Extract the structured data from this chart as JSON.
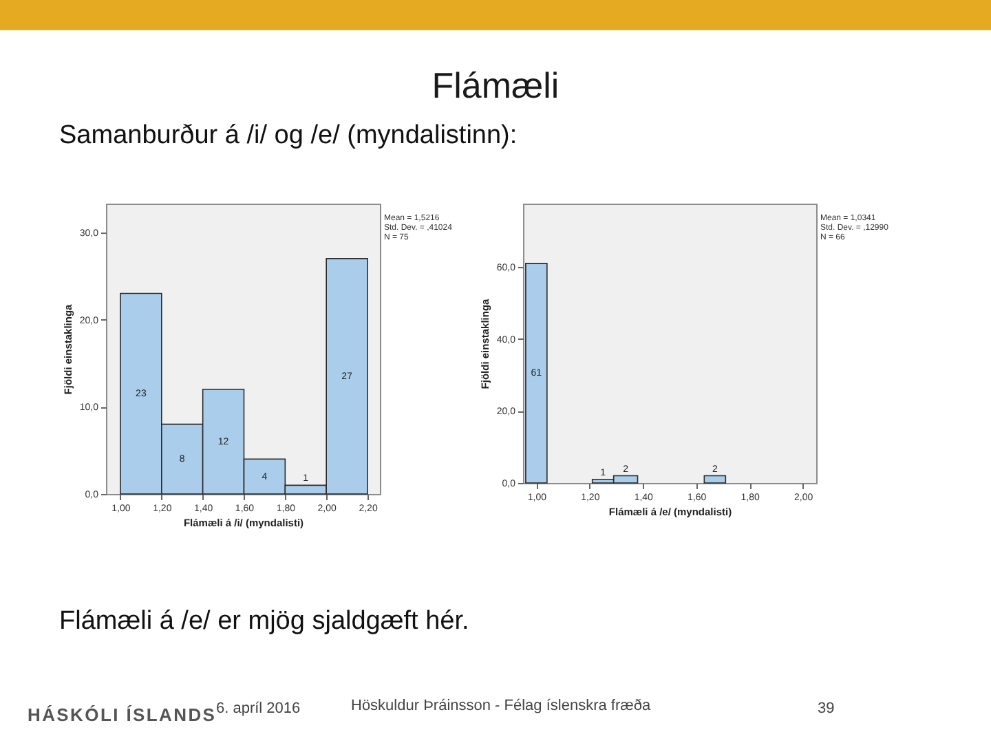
{
  "chart_data": [
    {
      "type": "other",
      "title": "Flámæli",
      "subtitle": "Samanburður á /i/ og /e/ (myndalistinn):",
      "annotations": [
        "Flámæli á /e/ er mjög sjaldgæft hér.",
        "HÁSKÓLI ÍSLANDS",
        "6. apríl 2016",
        "Höskuldur Þráinsson - Félag íslenskra fræða",
        "39"
      ]
    },
    {
      "type": "histogram",
      "bins": [
        1.0,
        1.2,
        1.4,
        1.6,
        1.8,
        2.0,
        2.2
      ],
      "values": [
        23,
        8,
        12,
        4,
        1,
        27
      ],
      "color": "#a9cdeb",
      "data_labels": true,
      "xlabel": "Flámæli á /i/ (myndalisti)",
      "ylabel": "Fjöldi einstaklinga",
      "xlim": [
        0.93,
        2.26
      ],
      "ylim": [
        0,
        33.3
      ],
      "xticks": [
        {
          "value": 1.0,
          "label": "1,00"
        },
        {
          "value": 1.2,
          "label": "1,20"
        },
        {
          "value": 1.4,
          "label": "1,40"
        },
        {
          "value": 1.6,
          "label": "1,60"
        },
        {
          "value": 1.8,
          "label": "1,80"
        },
        {
          "value": 2.0,
          "label": "2,00"
        },
        {
          "value": 2.2,
          "label": "2,20"
        }
      ],
      "yticks": [
        {
          "value": 0,
          "label": "0,0"
        },
        {
          "value": 10,
          "label": "10,0"
        },
        {
          "value": 20,
          "label": "20,0"
        },
        {
          "value": 30,
          "label": "30,0"
        }
      ],
      "annotations": [
        "Mean = 1,5216",
        "Std. Dev. = ,41024",
        "N = 75"
      ]
    },
    {
      "type": "histogram",
      "bins": [
        0.96,
        1.04,
        1.21,
        1.29,
        1.38,
        1.63,
        1.71
      ],
      "values": [
        61,
        null,
        1,
        2,
        null,
        2
      ],
      "color": "#a9cdeb",
      "data_labels": true,
      "xlabel": "Flámæli á /e/ (myndalisti)",
      "ylabel": "Fjöldi einstaklinga",
      "xlim": [
        0.95,
        2.05
      ],
      "ylim": [
        0,
        77.6
      ],
      "xticks": [
        {
          "value": 1.0,
          "label": "1,00"
        },
        {
          "value": 1.2,
          "label": "1,20"
        },
        {
          "value": 1.4,
          "label": "1,40"
        },
        {
          "value": 1.6,
          "label": "1,60"
        },
        {
          "value": 1.8,
          "label": "1,80"
        },
        {
          "value": 2.0,
          "label": "2,00"
        }
      ],
      "yticks": [
        {
          "value": 0,
          "label": "0,0"
        },
        {
          "value": 20,
          "label": "20,0"
        },
        {
          "value": 40,
          "label": "40,0"
        },
        {
          "value": 60,
          "label": "60,0"
        }
      ],
      "annotations": [
        "Mean = 1,0341",
        "Std. Dev. = ,12990",
        "N = 66"
      ]
    }
  ]
}
